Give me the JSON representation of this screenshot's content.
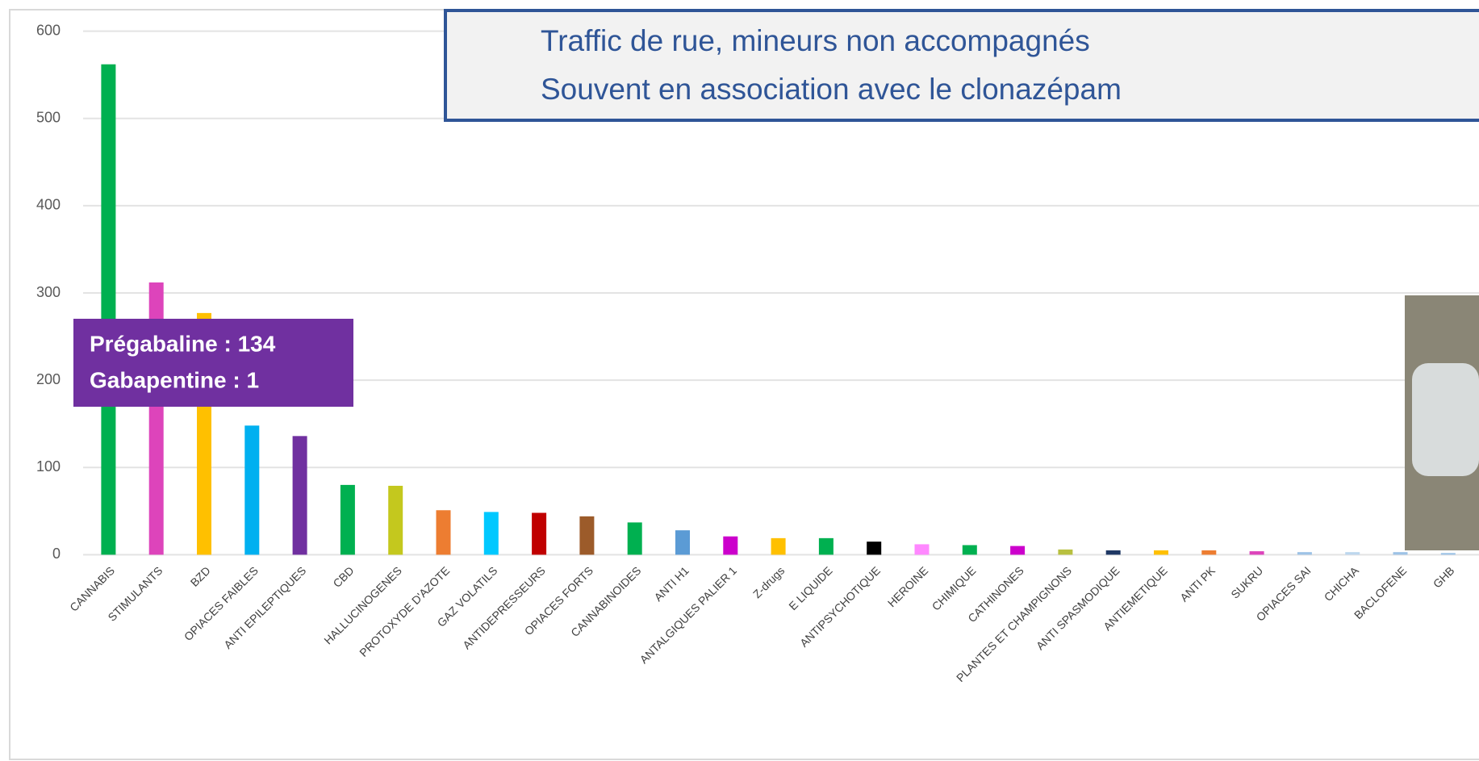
{
  "chart_data": {
    "type": "bar",
    "categories": [
      "CANNABIS",
      "STIMULANTS",
      "BZD",
      "OPIACES FAIBLES",
      "ANTI EPILEPTIQUES",
      "CBD",
      "HALLUCINOGENES",
      "PROTOXYDE D'AZOTE",
      "GAZ VOLATILS",
      "ANTIDEPRESSEURS",
      "OPIACES FORTS",
      "CANNABINOIDES",
      "ANTI H1",
      "ANTALGIQUES PALIER 1",
      "Z-drugs",
      "E LIQUIDE",
      "ANTIPSYCHOTIQUE",
      "HEROINE",
      "CHIMIQUE",
      "CATHINONES",
      "PLANTES ET CHAMPIGNONS",
      "ANTI SPASMODIQUE",
      "ANTIEMETIQUE",
      "ANTI PK",
      "SUKRU",
      "OPIACES SAI",
      "CHICHA",
      "BACLOFENE",
      "GHB"
    ],
    "values": [
      562,
      312,
      277,
      148,
      136,
      80,
      79,
      51,
      49,
      48,
      44,
      37,
      28,
      21,
      19,
      19,
      15,
      12,
      11,
      10,
      6,
      5,
      5,
      5,
      4,
      3,
      3,
      3,
      2
    ],
    "colors": [
      "#00b050",
      "#dd44bb",
      "#ffc000",
      "#00b0f0",
      "#7030a0",
      "#00b050",
      "#c4c81e",
      "#ed7d31",
      "#00c8ff",
      "#c00000",
      "#9c5b2a",
      "#00b050",
      "#5b9bd5",
      "#cc00cc",
      "#ffc000",
      "#00b050",
      "#000000",
      "#ff88ff",
      "#00b050",
      "#cc00cc",
      "#b8c040",
      "#1f3864",
      "#ffc000",
      "#ed7d31",
      "#dd44bb",
      "#9dc3e6",
      "#bdd7ee",
      "#9dc3e6",
      "#9dc3e6"
    ],
    "ylim": [
      0,
      600
    ],
    "yticks": [
      0,
      100,
      200,
      300,
      400,
      500,
      600
    ],
    "grid": true,
    "annotations": [
      "Traffic de rue, mineurs non accompagnés",
      "Souvent en association avec le clonazépam"
    ],
    "callout": [
      "Prégabaline : 134",
      "Gabapentine : 1"
    ]
  }
}
